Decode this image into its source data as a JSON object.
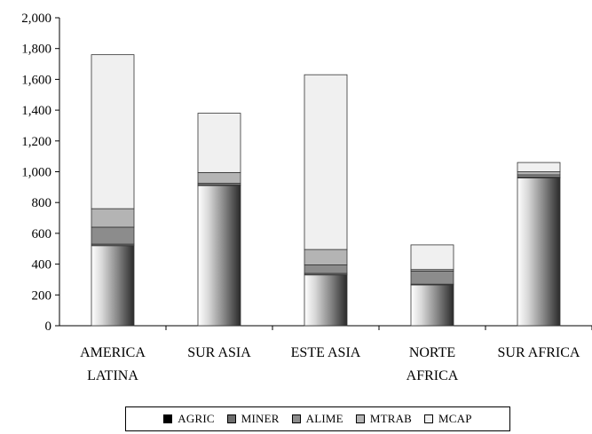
{
  "chart_data": {
    "type": "bar",
    "stacked": true,
    "categories": [
      "AMERICA LATINA",
      "SUR ASIA",
      "ESTE ASIA",
      "NORTE AFRICA",
      "SUR AFRICA"
    ],
    "category_lines": [
      [
        "AMERICA",
        "LATINA"
      ],
      [
        "SUR ASIA"
      ],
      [
        "ESTE ASIA"
      ],
      [
        "NORTE",
        "AFRICA"
      ],
      [
        "SUR AFRICA"
      ]
    ],
    "series": [
      {
        "name": "AGRIC",
        "values": [
          520,
          910,
          330,
          265,
          960
        ]
      },
      {
        "name": "MINER",
        "values": [
          10,
          5,
          10,
          5,
          5
        ]
      },
      {
        "name": "ALIME",
        "values": [
          110,
          10,
          55,
          85,
          15
        ]
      },
      {
        "name": "MTRAB",
        "values": [
          120,
          70,
          100,
          10,
          20
        ]
      },
      {
        "name": "MCAP",
        "values": [
          1000,
          385,
          1135,
          160,
          60
        ]
      }
    ],
    "series_colors": [
      "#000000",
      "#6e6e6e",
      "#8c8c8c",
      "#b4b4b4",
      "#f0f0f0"
    ],
    "ylim": [
      0,
      2000
    ],
    "yticks": [
      0,
      200,
      400,
      600,
      800,
      1000,
      1200,
      1400,
      1600,
      1800,
      2000
    ],
    "ytick_labels": [
      "0",
      "200",
      "400",
      "600",
      "800",
      "1,000",
      "1,200",
      "1,400",
      "1,600",
      "1,800",
      "2,000"
    ],
    "legend_position": "bottom",
    "grid": false
  }
}
